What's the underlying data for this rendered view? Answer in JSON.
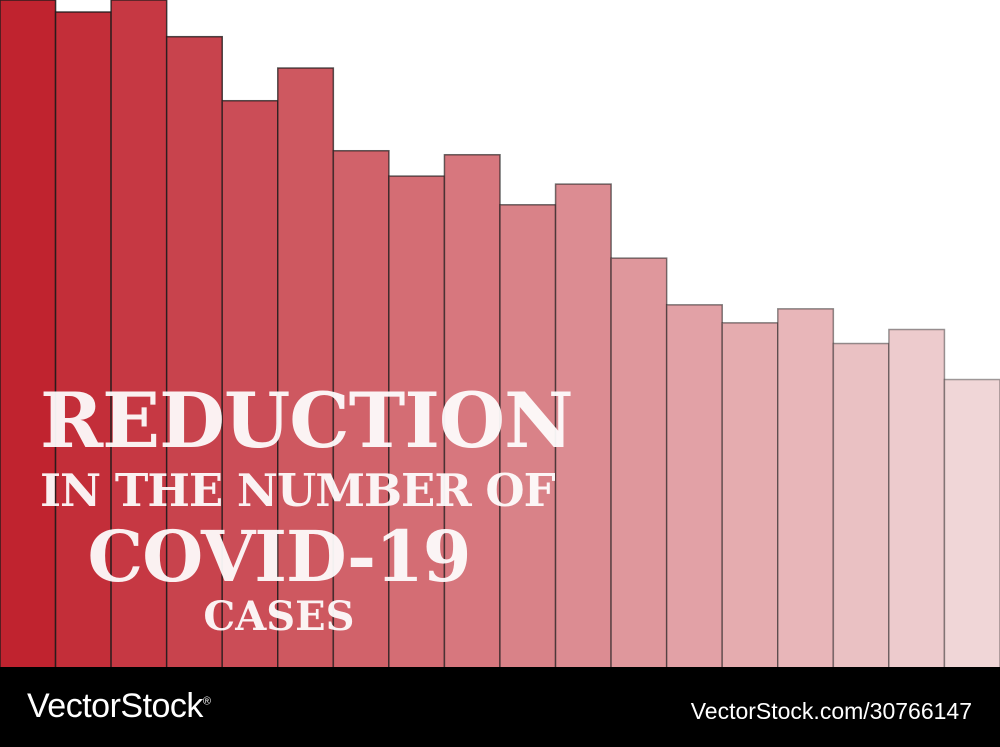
{
  "chart_data": {
    "type": "bar",
    "values": [
      100,
      98.2,
      100,
      94.5,
      84.9,
      89.8,
      77.4,
      73.6,
      76.8,
      69.3,
      72.4,
      61.3,
      54.3,
      51.6,
      53.7,
      48.5,
      50.6,
      43.1
    ],
    "ylim": [
      0,
      100
    ],
    "grid": false,
    "colors": {
      "start": "#c0232f",
      "end": "#f0d6d7",
      "outline": "#1a1a1a"
    }
  },
  "headline": {
    "line1": "REDUCTION",
    "line2": "IN THE NUMBER OF",
    "line3": "COVID-19",
    "line4": "CASES"
  },
  "footer": {
    "brand": "VectorStock",
    "registered_mark": "®",
    "stock_id": "VectorStock.com/30766147"
  }
}
